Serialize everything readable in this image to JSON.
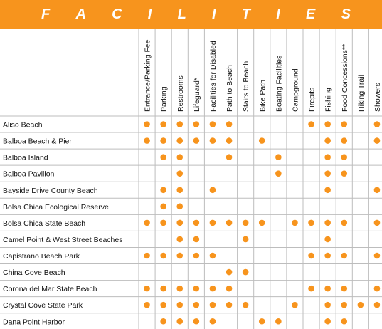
{
  "banner": {
    "letters": [
      "F",
      "A",
      "C",
      "I",
      "L",
      "I",
      "T",
      "I",
      "E",
      "S"
    ],
    "color": "#f7941d"
  },
  "dot_color": "#f7941d",
  "columns": [
    "Entrance/Parking Fee",
    "Parking",
    "Restrooms",
    "Lifeguard*",
    "Facilities for Disabled",
    "Path to Beach",
    "Stairs to Beach",
    "Bike Path",
    "Boating Facilities",
    "Campground",
    "Firepits",
    "Fishing",
    "Food Concessions**",
    "Hiking Trail",
    "Showers"
  ],
  "rows": [
    {
      "name": "Aliso Beach",
      "dots": [
        1,
        1,
        1,
        1,
        1,
        1,
        0,
        0,
        0,
        0,
        1,
        1,
        1,
        0,
        1
      ]
    },
    {
      "name": "Balboa Beach & Pier",
      "dots": [
        1,
        1,
        1,
        1,
        1,
        1,
        0,
        1,
        0,
        0,
        0,
        1,
        1,
        0,
        1
      ]
    },
    {
      "name": "Balboa Island",
      "dots": [
        0,
        1,
        1,
        0,
        0,
        1,
        0,
        0,
        1,
        0,
        0,
        1,
        1,
        0,
        0
      ]
    },
    {
      "name": "Balboa Pavilion",
      "dots": [
        0,
        0,
        1,
        0,
        0,
        0,
        0,
        0,
        1,
        0,
        0,
        1,
        1,
        0,
        0
      ]
    },
    {
      "name": "Bayside Drive County Beach",
      "dots": [
        0,
        1,
        1,
        0,
        1,
        0,
        0,
        0,
        0,
        0,
        0,
        1,
        0,
        0,
        1
      ]
    },
    {
      "name": "Bolsa Chica Ecological Reserve",
      "dots": [
        0,
        1,
        1,
        0,
        0,
        0,
        0,
        0,
        0,
        0,
        0,
        0,
        0,
        0,
        0
      ]
    },
    {
      "name": "Bolsa Chica State Beach",
      "dots": [
        1,
        1,
        1,
        1,
        1,
        1,
        1,
        1,
        0,
        1,
        1,
        1,
        1,
        0,
        1
      ]
    },
    {
      "name": "Camel Point & West Street Beaches",
      "dots": [
        0,
        0,
        1,
        1,
        0,
        0,
        1,
        0,
        0,
        0,
        0,
        1,
        0,
        0,
        0
      ]
    },
    {
      "name": "Capistrano Beach Park",
      "dots": [
        1,
        1,
        1,
        1,
        1,
        0,
        0,
        0,
        0,
        0,
        1,
        1,
        1,
        0,
        1
      ]
    },
    {
      "name": "China Cove Beach",
      "dots": [
        0,
        0,
        0,
        0,
        0,
        1,
        1,
        0,
        0,
        0,
        0,
        0,
        0,
        0,
        0
      ]
    },
    {
      "name": "Corona del Mar State Beach",
      "dots": [
        1,
        1,
        1,
        1,
        1,
        1,
        0,
        0,
        0,
        0,
        1,
        1,
        1,
        0,
        1
      ]
    },
    {
      "name": "Crystal Cove State Park",
      "dots": [
        1,
        1,
        1,
        1,
        1,
        1,
        1,
        0,
        0,
        1,
        0,
        1,
        1,
        1,
        1
      ]
    },
    {
      "name": "Dana Point Harbor",
      "dots": [
        0,
        1,
        1,
        1,
        1,
        0,
        0,
        1,
        1,
        0,
        0,
        1,
        1,
        0,
        0
      ]
    }
  ]
}
